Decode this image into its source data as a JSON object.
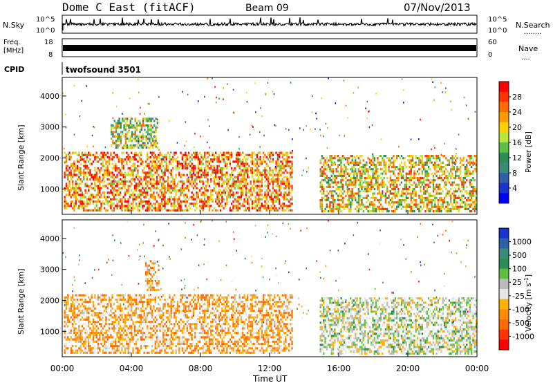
{
  "header": {
    "station": "Dome C East (fitACF)",
    "beam": "Beam 09",
    "date": "07/Nov/2013"
  },
  "noise_panel": {
    "left_label": "N.Sky",
    "left_ticks": [
      "10^5",
      "10^0"
    ],
    "right_label": "N.Search",
    "right_ticks": [
      "10^5",
      "10^0"
    ],
    "right_legend_dots": "........"
  },
  "freq_panel": {
    "left_label_1": "Freq.",
    "left_label_2": "[MHz]",
    "left_ticks": [
      "18",
      "8"
    ],
    "right_label": "Nave",
    "right_ticks": [
      "60",
      "0"
    ],
    "right_legend_dots": "...."
  },
  "cpid_panel": {
    "label": "CPID",
    "program": "twofsound 3501"
  },
  "power_panel": {
    "ylabel": "Slant Range [km]",
    "yticks": [
      "4000",
      "3000",
      "2000",
      "1000"
    ],
    "colorbar_label": "Power [dB]",
    "colorbar_ticks": [
      "28",
      "24",
      "20",
      "16",
      "12",
      "8",
      "4"
    ],
    "colorbar_colors": [
      "#ff0000",
      "#ff3300",
      "#ff6a00",
      "#ff9900",
      "#ffd000",
      "#b8e63a",
      "#5fbf45",
      "#2e8b57",
      "#3c8a7a",
      "#2f5fa5",
      "#1a33cc",
      "#0000ff"
    ]
  },
  "velocity_panel": {
    "ylabel": "Slant Range [km]",
    "yticks": [
      "4000",
      "3000",
      "2000",
      "1000"
    ],
    "colorbar_label": "Velocity [m s^-1]",
    "colorbar_ticks": [
      "1000",
      "500",
      "100",
      "25",
      "-25",
      "-100",
      "-500",
      "-1000"
    ],
    "colorbar_colors": [
      "#1a33cc",
      "#2f5fa5",
      "#3c8a7a",
      "#2e8b57",
      "#5fbf45",
      "#bbbbbb",
      "#e6e6e6",
      "#ffb000",
      "#ff8c00",
      "#ff6a00",
      "#ff3300",
      "#ff0000"
    ]
  },
  "x_axis": {
    "ticks": [
      "00:00",
      "04:00",
      "08:00",
      "12:00",
      "16:00",
      "20:00",
      "00:00"
    ],
    "label": "Time UT"
  },
  "chart_data": [
    {
      "type": "heatmap",
      "panel": "power",
      "x_range_hours": [
        0,
        24
      ],
      "y_range_km": [
        180,
        4600
      ],
      "colorbar_range_db": [
        0,
        32
      ],
      "echo_regions": [
        {
          "t_start": 0.1,
          "t_end": 13.3,
          "r_low": 300,
          "r_high": 2200,
          "dominant_power_db": 24
        },
        {
          "t_start": 2.8,
          "t_end": 5.5,
          "r_low": 2300,
          "r_high": 3300,
          "dominant_power_db": 16
        },
        {
          "t_start": 14.9,
          "t_end": 24.0,
          "r_low": 300,
          "r_high": 2100,
          "dominant_power_db": 20
        }
      ]
    },
    {
      "type": "heatmap",
      "panel": "velocity",
      "x_range_hours": [
        0,
        24
      ],
      "y_range_km": [
        180,
        4600
      ],
      "colorbar_range_ms": [
        -1000,
        1000
      ],
      "echo_regions": [
        {
          "t_start": 0.1,
          "t_end": 13.3,
          "r_low": 300,
          "r_high": 2200,
          "dominant_velocity_ms": -300
        },
        {
          "t_start": 4.8,
          "t_end": 5.6,
          "r_low": 2300,
          "r_high": 3300,
          "dominant_velocity_ms": -300
        },
        {
          "t_start": 14.9,
          "t_end": 24.0,
          "r_low": 300,
          "r_high": 2100,
          "dominant_velocity_ms": 50
        }
      ]
    }
  ]
}
